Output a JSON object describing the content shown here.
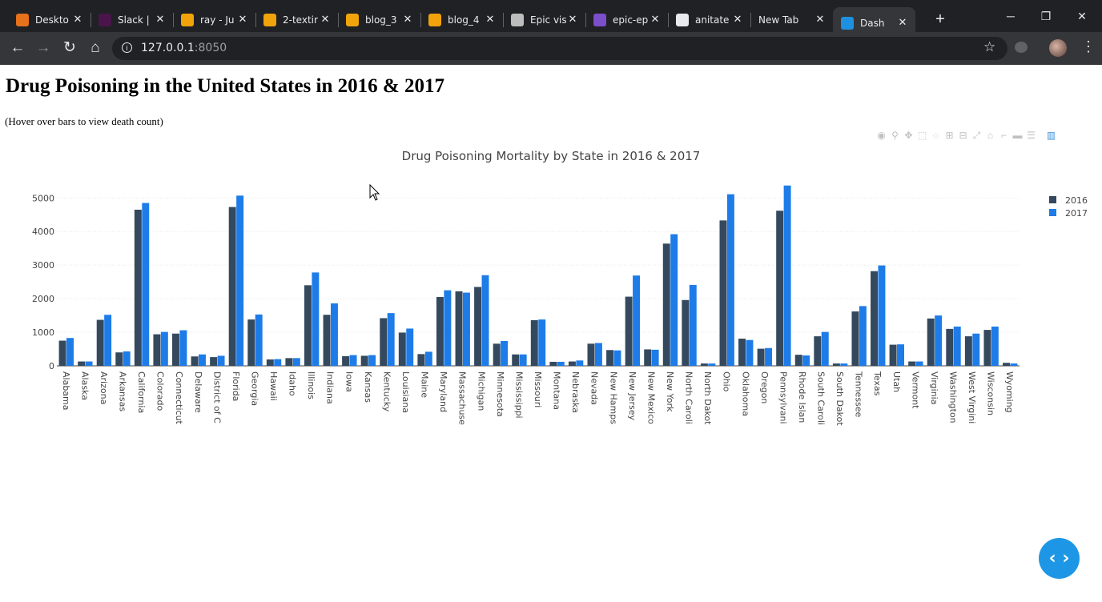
{
  "browser": {
    "tabs": [
      {
        "label": "Deskto",
        "icon": "ring-icon",
        "color": "#e8711c"
      },
      {
        "label": "Slack | ",
        "icon": "slack-icon",
        "color": "#4a154b"
      },
      {
        "label": "ray - Ju",
        "icon": "book-icon",
        "color": "#f0a30a"
      },
      {
        "label": "2-textir",
        "icon": "book-icon",
        "color": "#f0a30a"
      },
      {
        "label": "blog_3",
        "icon": "book-icon",
        "color": "#f0a30a"
      },
      {
        "label": "blog_4",
        "icon": "book-icon",
        "color": "#f0a30a"
      },
      {
        "label": "Epic vis",
        "icon": "coffee-icon",
        "color": "#bdbdbd"
      },
      {
        "label": "epic-ep",
        "icon": "k-icon",
        "color": "#7b4fc9"
      },
      {
        "label": "anitate",
        "icon": "github-icon",
        "color": "#e8eaed"
      },
      {
        "label": "New Tab",
        "icon": "",
        "color": ""
      },
      {
        "label": "Dash",
        "icon": "dash-icon",
        "color": "#1e90e0",
        "active": true
      }
    ],
    "url_host": "127.0.0.1",
    "url_port": ":8050"
  },
  "page": {
    "title": "Drug Poisoning in the United States in 2016 & 2017",
    "subtitle": "(Hover over bars to view death count)"
  },
  "chart_data": {
    "type": "bar",
    "title": "Drug Poisoning Mortality by State in 2016 & 2017",
    "xlabel": "",
    "ylabel": "",
    "ylim": [
      0,
      5650
    ],
    "yticks": [
      0,
      1000,
      2000,
      3000,
      4000,
      5000
    ],
    "grid": true,
    "legend_position": "top-right",
    "categories": [
      "Alabama",
      "Alaska",
      "Arizona",
      "Arkansas",
      "California",
      "Colorado",
      "Connecticut",
      "Delaware",
      "District of C",
      "Florida",
      "Georgia",
      "Hawaii",
      "Idaho",
      "Illinois",
      "Indiana",
      "Iowa",
      "Kansas",
      "Kentucky",
      "Louisiana",
      "Maine",
      "Maryland",
      "Massachuse",
      "Michigan",
      "Minnesota",
      "Mississippi",
      "Missouri",
      "Montana",
      "Nebraska",
      "Nevada",
      "New Hamps",
      "New Jersey",
      "New Mexico",
      "New York",
      "North Caroli",
      "North Dakot",
      "Ohio",
      "Oklahoma",
      "Oregon",
      "Pennsylvani",
      "Rhode Islan",
      "South Caroli",
      "South Dakot",
      "Tennessee",
      "Texas",
      "Utah",
      "Vermont",
      "Virginia",
      "Washington",
      "West Virgini",
      "Wisconsin",
      "Wyoming"
    ],
    "series": [
      {
        "name": "2016",
        "color": "#34495e",
        "values": [
          750,
          130,
          1370,
          400,
          4650,
          940,
          960,
          280,
          260,
          4730,
          1380,
          190,
          230,
          2400,
          1520,
          290,
          300,
          1420,
          990,
          350,
          2050,
          2220,
          2350,
          660,
          340,
          1360,
          120,
          130,
          660,
          470,
          2060,
          490,
          3640,
          1960,
          70,
          4330,
          810,
          510,
          4620,
          330,
          880,
          70,
          1620,
          2820,
          630,
          130,
          1410,
          1100,
          880,
          1070,
          90
        ]
      },
      {
        "name": "2017",
        "color": "#1e7ce8",
        "values": [
          830,
          130,
          1520,
          430,
          4850,
          1010,
          1060,
          340,
          300,
          5070,
          1530,
          200,
          230,
          2780,
          1860,
          320,
          320,
          1570,
          1110,
          420,
          2250,
          2180,
          2700,
          740,
          340,
          1380,
          120,
          160,
          680,
          460,
          2690,
          480,
          3920,
          2410,
          70,
          5110,
          770,
          530,
          5370,
          310,
          1010,
          70,
          1780,
          2990,
          640,
          130,
          1500,
          1170,
          960,
          1170,
          70
        ]
      }
    ]
  },
  "modebar": {
    "icons": [
      "camera-icon",
      "zoom-icon",
      "pan-icon",
      "box-select-icon",
      "lasso-icon",
      "zoom-in-icon",
      "zoom-out-icon",
      "autoscale-icon",
      "reset-axes-icon",
      "spike-lines-icon",
      "hover-closest-icon",
      "hover-compare-icon",
      "plotly-logo-icon"
    ]
  },
  "fab": {
    "label": "‹ ›"
  }
}
